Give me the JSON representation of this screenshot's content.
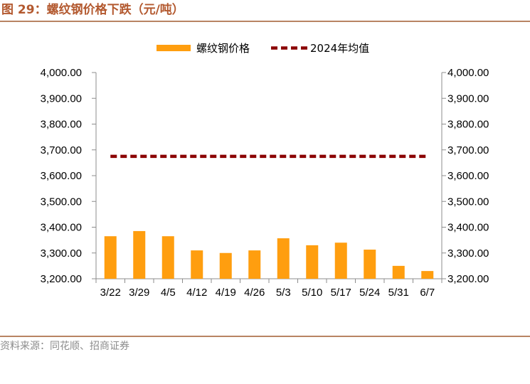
{
  "figure": {
    "title": "图 29：螺纹钢价格下跌（元/吨）",
    "source": "资料来源：同花顺、招商证券"
  },
  "colors": {
    "bar": "#ff9e0f",
    "avg_line": "#8b0000",
    "title": "#b3592f",
    "rule": "#b88463",
    "axis": "#8c8c8c"
  },
  "chart_data": {
    "type": "bar",
    "categories": [
      "3/22",
      "3/29",
      "4/5",
      "4/12",
      "4/19",
      "4/26",
      "5/3",
      "5/10",
      "5/17",
      "5/24",
      "5/31",
      "6/7"
    ],
    "series": [
      {
        "name": "螺纹钢价格",
        "type": "bar",
        "values": [
          3365,
          3385,
          3365,
          3310,
          3300,
          3310,
          3357,
          3330,
          3340,
          3313,
          3250,
          3230
        ]
      },
      {
        "name": "2024年均值",
        "type": "line",
        "style": "dashed",
        "values": [
          3675,
          3675,
          3675,
          3675,
          3675,
          3675,
          3675,
          3675,
          3675,
          3675,
          3675,
          3675
        ]
      }
    ],
    "ylim": [
      3200,
      4000
    ],
    "yticks": [
      "3,200.00",
      "3,300.00",
      "3,400.00",
      "3,500.00",
      "3,600.00",
      "3,700.00",
      "3,800.00",
      "3,900.00",
      "4,000.00"
    ],
    "y_right_ticks": [
      "3,200.00",
      "3,300.00",
      "3,400.00",
      "3,500.00",
      "3,600.00",
      "3,700.00",
      "3,800.00",
      "3,900.00",
      "4,000.00"
    ],
    "legend_position": "top-center",
    "grid": false
  }
}
